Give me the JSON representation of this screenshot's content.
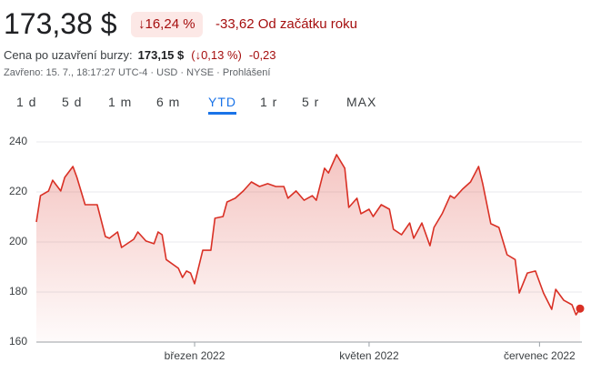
{
  "header": {
    "price": "173,38 $",
    "change_pct": "↓16,24 %",
    "change_ytd": "-33,62 Od začátku roku",
    "after_label": "Cena po uzavření burzy:",
    "after_price": "173,15 $",
    "after_pct": "(↓0,13 %)",
    "after_change": "-0,23",
    "closed": "Zavřeno: 15. 7., 18:17:27 UTC-4 · USD · NYSE · Prohlášení"
  },
  "tabs": [
    "1 d",
    "5 d",
    "1 m",
    "6 m",
    "YTD",
    "1 r",
    "5 r",
    "MAX"
  ],
  "active_tab": "YTD",
  "chart_data": {
    "type": "line",
    "color": "#d93025",
    "grid": true,
    "x": [
      0,
      1,
      3,
      4,
      6,
      7,
      9,
      10,
      12,
      15,
      17,
      18,
      20,
      21,
      24,
      25,
      27,
      29,
      30,
      31,
      32,
      35,
      36,
      37,
      38,
      39,
      41,
      43,
      44,
      46,
      47,
      49,
      51,
      53,
      55,
      57,
      59,
      61,
      62,
      64,
      66,
      68,
      69,
      71,
      72,
      74,
      76,
      77,
      79,
      80,
      82,
      83,
      85,
      87,
      88,
      90,
      92,
      93,
      95,
      97,
      98,
      100,
      102,
      103,
      105,
      107,
      109,
      110,
      112,
      114,
      116,
      118,
      119,
      121,
      123,
      125,
      127,
      128,
      130,
      132,
      133,
      134
    ],
    "values": [
      208,
      218.5,
      220.4,
      224.7,
      220.4,
      225.8,
      230.2,
      225.8,
      214.9,
      214.9,
      202.2,
      201.5,
      204,
      197.8,
      201.1,
      204,
      200.4,
      199.3,
      204,
      202.9,
      193,
      189.5,
      185.8,
      188.4,
      187.6,
      183.3,
      196.7,
      196.7,
      209.5,
      210.2,
      216,
      217.5,
      220.4,
      224,
      222.2,
      223.3,
      222.2,
      222.2,
      217.5,
      220.4,
      216.7,
      218.5,
      216.7,
      229.5,
      227.6,
      234.9,
      229.5,
      213.8,
      217.5,
      211.3,
      213.1,
      210.2,
      214.9,
      213.1,
      205.1,
      202.9,
      207.6,
      201.5,
      207.6,
      198.5,
      205.8,
      211.3,
      218.5,
      217.5,
      221.1,
      224,
      230.2,
      223.3,
      207.3,
      205.8,
      194.9,
      193,
      179.6,
      187.6,
      188.4,
      179.6,
      173.1,
      181.1,
      176.7,
      174.9,
      170.9,
      173.38
    ],
    "xlim": [
      0,
      134
    ],
    "xticks": [
      {
        "value": 39,
        "label": "březen 2022"
      },
      {
        "value": 82,
        "label": "květen 2022"
      },
      {
        "value": 124,
        "label": "červenec 2022"
      }
    ],
    "ylim": [
      160,
      240
    ],
    "yticks": [
      160,
      180,
      200,
      220,
      240
    ]
  }
}
